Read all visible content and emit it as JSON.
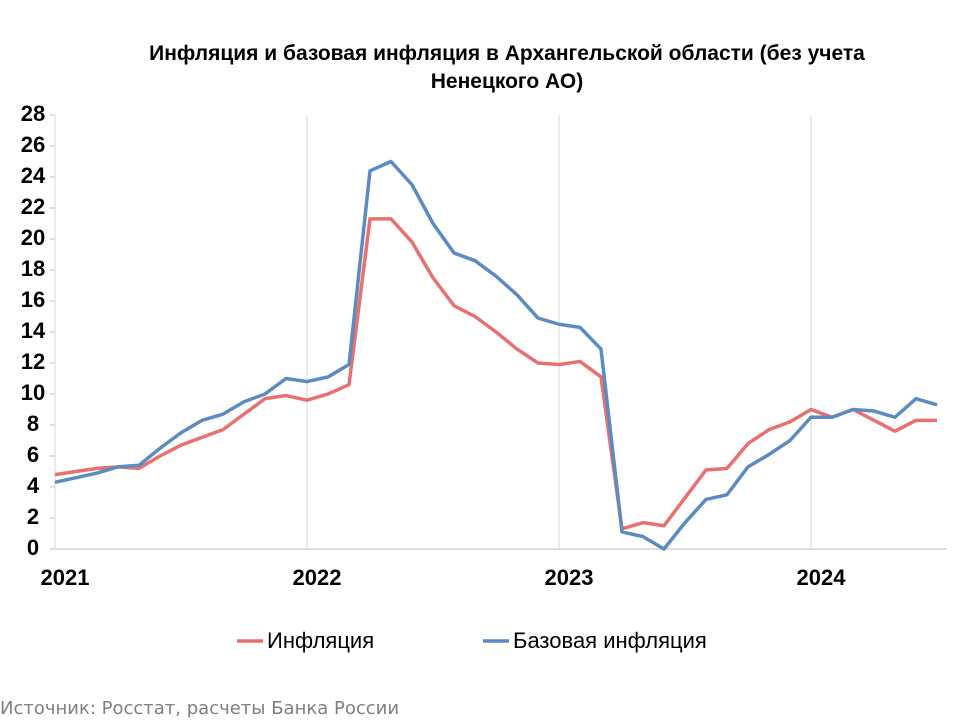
{
  "chart_data": {
    "type": "line",
    "title": "Инфляция и базовая инфляция в Архангельской области (без учета Ненецкого АО)",
    "categories": [
      "2021",
      null,
      null,
      null,
      null,
      null,
      null,
      null,
      null,
      null,
      null,
      null,
      "2022",
      null,
      null,
      null,
      null,
      null,
      null,
      null,
      null,
      null,
      null,
      null,
      "2023",
      null,
      null,
      null,
      null,
      null,
      null,
      null,
      null,
      null,
      null,
      null,
      "2024",
      null,
      null,
      null,
      null,
      null,
      null
    ],
    "series": [
      {
        "name": "Инфляция",
        "color": "#e8706f",
        "values": [
          4.8,
          5.0,
          5.2,
          5.3,
          5.2,
          6.0,
          6.7,
          7.2,
          7.7,
          8.7,
          9.7,
          9.9,
          9.6,
          10.0,
          10.6,
          21.3,
          21.3,
          19.8,
          17.5,
          15.7,
          15.0,
          14.0,
          12.9,
          12.0,
          11.9,
          12.1,
          11.1,
          1.3,
          1.7,
          1.5,
          3.3,
          5.1,
          5.2,
          6.8,
          7.7,
          8.2,
          9.0,
          8.5,
          9.0,
          8.3,
          7.6,
          8.3,
          8.3
        ]
      },
      {
        "name": "Базовая инфляция",
        "color": "#5b8bc0",
        "values": [
          4.3,
          4.6,
          4.9,
          5.3,
          5.4,
          6.5,
          7.5,
          8.3,
          8.7,
          9.5,
          10.0,
          11.0,
          10.8,
          11.1,
          11.9,
          24.4,
          25.0,
          23.5,
          21.0,
          19.1,
          18.6,
          17.6,
          16.4,
          14.9,
          14.5,
          14.3,
          12.9,
          1.1,
          0.8,
          0.0,
          1.7,
          3.2,
          3.5,
          5.3,
          6.1,
          7.0,
          8.5,
          8.5,
          9.0,
          8.9,
          8.5,
          9.7,
          9.3
        ]
      }
    ],
    "ylim": [
      0,
      28
    ],
    "yticks": [
      0,
      2,
      4,
      6,
      8,
      10,
      12,
      14,
      16,
      18,
      20,
      22,
      24,
      26,
      28
    ],
    "grid": "x",
    "legend": "bottom"
  },
  "source": "Источник: Росстат, расчеты Банка России"
}
